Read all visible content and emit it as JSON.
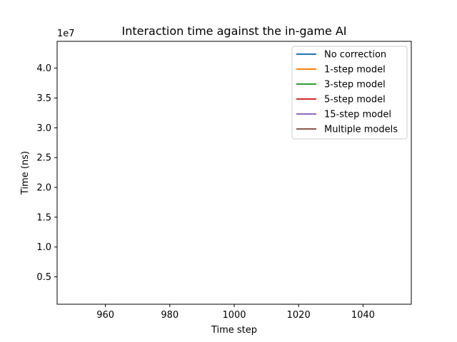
{
  "chart_data": {
    "type": "line",
    "title": "Interaction time against the in-game AI",
    "xlabel": "Time step",
    "ylabel": "Time (ns)",
    "y_offset_label": "1e7",
    "xlim": [
      945,
      1055
    ],
    "ylim": [
      0.04,
      4.45
    ],
    "x_ticks": [
      960,
      980,
      1000,
      1020,
      1040
    ],
    "x_tick_labels": [
      "960",
      "980",
      "1000",
      "1020",
      "1040"
    ],
    "y_ticks": [
      0.5,
      1.0,
      1.5,
      2.0,
      2.5,
      3.0,
      3.5,
      4.0
    ],
    "y_tick_labels": [
      "0.5",
      "1.0",
      "1.5",
      "2.0",
      "2.5",
      "3.0",
      "3.5",
      "4.0"
    ],
    "grid": false,
    "legend_position": "top-right",
    "series": [
      {
        "name": "No correction",
        "color": "#1f77b4",
        "x": [],
        "y": []
      },
      {
        "name": "1-step model",
        "color": "#ff7f0e",
        "x": [],
        "y": []
      },
      {
        "name": "3-step model",
        "color": "#2ca02c",
        "x": [],
        "y": []
      },
      {
        "name": "5-step model",
        "color": "#d62728",
        "x": [],
        "y": []
      },
      {
        "name": "15-step model",
        "color": "#9467bd",
        "x": [],
        "y": []
      },
      {
        "name": "Multiple models",
        "color": "#8c564b",
        "x": [],
        "y": []
      }
    ]
  }
}
